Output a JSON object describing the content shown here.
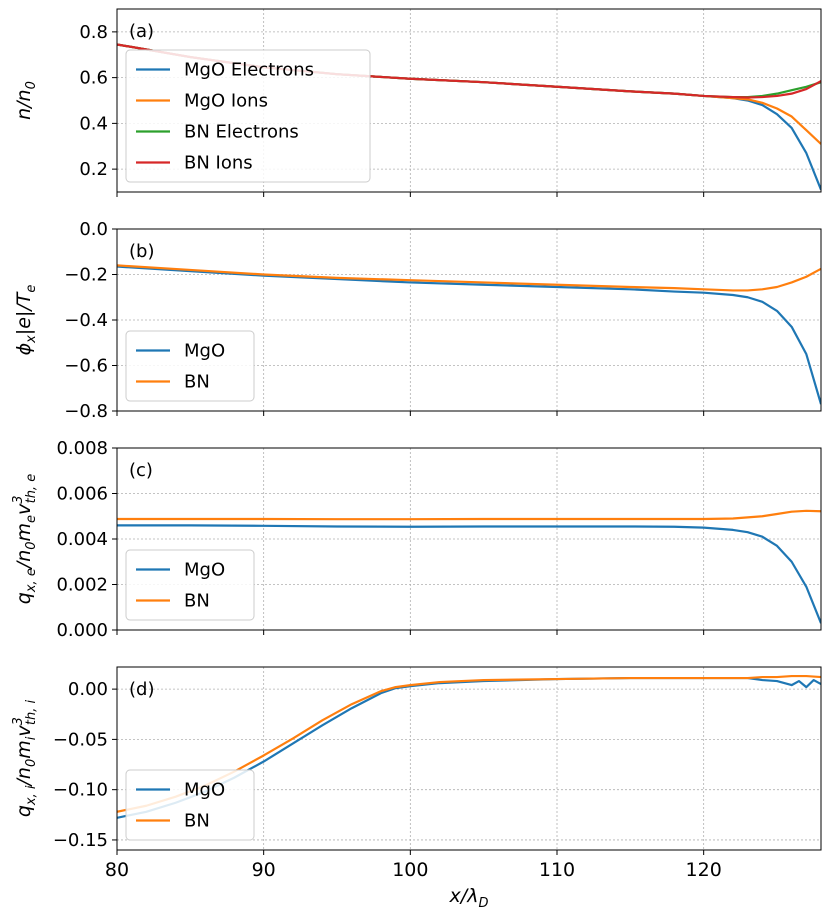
{
  "chart_data": [
    {
      "type": "line",
      "panel_label": "(a)",
      "ylabel_main": "n/n",
      "ylabel_sub": "0",
      "ylim": [
        0.1,
        0.9
      ],
      "yticks": [
        0.2,
        0.4,
        0.6,
        0.8
      ],
      "ytick_labels": [
        "0.2",
        "0.4",
        "0.6",
        "0.8"
      ],
      "xlim": [
        80,
        128
      ],
      "grid": true,
      "legend_position": "lower-left",
      "series": [
        {
          "name": "MgO Electrons",
          "color": "#1f77b4",
          "x": [
            80,
            85,
            90,
            95,
            100,
            105,
            110,
            115,
            118,
            120,
            122,
            123,
            124,
            125,
            126,
            127,
            128
          ],
          "y": [
            0.745,
            0.69,
            0.645,
            0.615,
            0.595,
            0.58,
            0.56,
            0.54,
            0.53,
            0.52,
            0.51,
            0.5,
            0.48,
            0.44,
            0.38,
            0.27,
            0.11
          ]
        },
        {
          "name": "MgO Ions",
          "color": "#ff7f0e",
          "x": [
            80,
            85,
            90,
            95,
            100,
            105,
            110,
            115,
            118,
            120,
            122,
            123,
            124,
            125,
            126,
            127,
            128
          ],
          "y": [
            0.745,
            0.69,
            0.645,
            0.615,
            0.595,
            0.58,
            0.56,
            0.54,
            0.53,
            0.52,
            0.51,
            0.505,
            0.49,
            0.465,
            0.43,
            0.37,
            0.31
          ]
        },
        {
          "name": "BN Electrons",
          "color": "#2ca02c",
          "x": [
            80,
            85,
            90,
            95,
            100,
            105,
            110,
            115,
            118,
            120,
            122,
            123,
            124,
            125,
            126,
            127,
            128
          ],
          "y": [
            0.745,
            0.69,
            0.645,
            0.615,
            0.595,
            0.58,
            0.56,
            0.54,
            0.53,
            0.52,
            0.515,
            0.515,
            0.52,
            0.53,
            0.545,
            0.56,
            0.58
          ]
        },
        {
          "name": "BN Ions",
          "color": "#d62728",
          "x": [
            80,
            85,
            90,
            95,
            100,
            105,
            110,
            115,
            118,
            120,
            122,
            123,
            124,
            125,
            126,
            127,
            128
          ],
          "y": [
            0.745,
            0.69,
            0.645,
            0.615,
            0.595,
            0.58,
            0.56,
            0.54,
            0.53,
            0.52,
            0.515,
            0.513,
            0.515,
            0.52,
            0.53,
            0.55,
            0.585
          ]
        }
      ]
    },
    {
      "type": "line",
      "panel_label": "(b)",
      "ylabel_main": "ϕ",
      "ylabel_sub": "x",
      "ylabel_rest": "|e|/T",
      "ylabel_sub2": "e",
      "ylim": [
        -0.8,
        0.0
      ],
      "yticks": [
        -0.8,
        -0.6,
        -0.4,
        -0.2,
        0.0
      ],
      "ytick_labels": [
        "−0.8",
        "−0.6",
        "−0.4",
        "−0.2",
        "0.0"
      ],
      "xlim": [
        80,
        128
      ],
      "grid": true,
      "legend_position": "lower-left",
      "series": [
        {
          "name": "MgO",
          "color": "#1f77b4",
          "x": [
            80,
            85,
            90,
            95,
            100,
            105,
            110,
            115,
            118,
            120,
            122,
            123,
            124,
            125,
            126,
            127,
            128
          ],
          "y": [
            -0.165,
            -0.185,
            -0.205,
            -0.22,
            -0.235,
            -0.245,
            -0.255,
            -0.265,
            -0.275,
            -0.28,
            -0.29,
            -0.3,
            -0.32,
            -0.36,
            -0.43,
            -0.55,
            -0.77
          ]
        },
        {
          "name": "BN",
          "color": "#ff7f0e",
          "x": [
            80,
            85,
            90,
            95,
            100,
            105,
            110,
            115,
            118,
            120,
            122,
            123,
            124,
            125,
            126,
            127,
            128
          ],
          "y": [
            -0.16,
            -0.18,
            -0.2,
            -0.215,
            -0.225,
            -0.235,
            -0.245,
            -0.255,
            -0.26,
            -0.265,
            -0.27,
            -0.27,
            -0.265,
            -0.255,
            -0.235,
            -0.21,
            -0.175
          ]
        }
      ]
    },
    {
      "type": "line",
      "panel_label": "(c)",
      "ylabel_main": "q",
      "ylabel_sub": "x, e",
      "ylabel_rest": "/n",
      "ylabel_sub2": "0",
      "ylabel_rest2": "m",
      "ylabel_sub3": "e",
      "ylabel_rest3": "v",
      "ylabel_sup": "3",
      "ylabel_sub4": "th, e",
      "ylim": [
        0.0,
        0.008
      ],
      "yticks": [
        0.0,
        0.002,
        0.004,
        0.006,
        0.008
      ],
      "ytick_labels": [
        "0.000",
        "0.002",
        "0.004",
        "0.006",
        "0.008"
      ],
      "xlim": [
        80,
        128
      ],
      "grid": true,
      "legend_position": "lower-left",
      "series": [
        {
          "name": "MgO",
          "color": "#1f77b4",
          "x": [
            80,
            85,
            90,
            95,
            100,
            105,
            110,
            115,
            118,
            120,
            122,
            123,
            124,
            125,
            126,
            127,
            128
          ],
          "y": [
            0.0046,
            0.0046,
            0.00458,
            0.00455,
            0.00454,
            0.00455,
            0.00455,
            0.00455,
            0.00454,
            0.0045,
            0.0044,
            0.0043,
            0.0041,
            0.0037,
            0.003,
            0.0019,
            0.0003
          ]
        },
        {
          "name": "BN",
          "color": "#ff7f0e",
          "x": [
            80,
            85,
            90,
            95,
            100,
            105,
            110,
            115,
            118,
            120,
            122,
            123,
            124,
            125,
            126,
            127,
            128
          ],
          "y": [
            0.00488,
            0.00488,
            0.00488,
            0.00487,
            0.00487,
            0.00488,
            0.00488,
            0.00488,
            0.00488,
            0.00488,
            0.0049,
            0.00495,
            0.005,
            0.0051,
            0.0052,
            0.00524,
            0.00522
          ]
        }
      ]
    },
    {
      "type": "line",
      "panel_label": "(d)",
      "ylabel_main": "q",
      "ylabel_sub": "x, i",
      "ylabel_rest": "/n",
      "ylabel_sub2": "0",
      "ylabel_rest2": "m",
      "ylabel_sub3": "i",
      "ylabel_rest3": "v",
      "ylabel_sup": "3",
      "ylabel_sub4": "th, i",
      "ylim": [
        -0.16,
        0.022
      ],
      "yticks": [
        -0.15,
        -0.1,
        -0.05,
        0.0
      ],
      "ytick_labels": [
        "−0.15",
        "−0.10",
        "−0.05",
        "0.00"
      ],
      "xlim": [
        80,
        128
      ],
      "xticks": [
        80,
        90,
        100,
        110,
        120
      ],
      "xtick_labels": [
        "80",
        "90",
        "100",
        "110",
        "120"
      ],
      "xlabel_main": "x/λ",
      "xlabel_sub": "D",
      "grid": true,
      "legend_position": "lower-left",
      "series": [
        {
          "name": "MgO",
          "color": "#1f77b4",
          "x": [
            80,
            82,
            84,
            86,
            88,
            90,
            92,
            94,
            96,
            98,
            99,
            100,
            102,
            105,
            110,
            115,
            120,
            123,
            124,
            125,
            126,
            126.5,
            127,
            127.5,
            128
          ],
          "y": [
            -0.128,
            -0.122,
            -0.113,
            -0.102,
            -0.088,
            -0.072,
            -0.054,
            -0.036,
            -0.019,
            -0.004,
            0.001,
            0.003,
            0.006,
            0.008,
            0.01,
            0.011,
            0.011,
            0.011,
            0.009,
            0.008,
            0.004,
            0.008,
            0.002,
            0.009,
            0.005
          ]
        },
        {
          "name": "BN",
          "color": "#ff7f0e",
          "x": [
            80,
            82,
            84,
            86,
            88,
            90,
            92,
            94,
            96,
            98,
            99,
            100,
            102,
            105,
            110,
            115,
            120,
            123,
            124,
            125,
            126,
            127,
            128
          ],
          "y": [
            -0.122,
            -0.116,
            -0.107,
            -0.096,
            -0.082,
            -0.066,
            -0.049,
            -0.031,
            -0.015,
            -0.002,
            0.002,
            0.004,
            0.007,
            0.009,
            0.01,
            0.011,
            0.011,
            0.011,
            0.012,
            0.012,
            0.013,
            0.013,
            0.012
          ]
        }
      ]
    }
  ]
}
